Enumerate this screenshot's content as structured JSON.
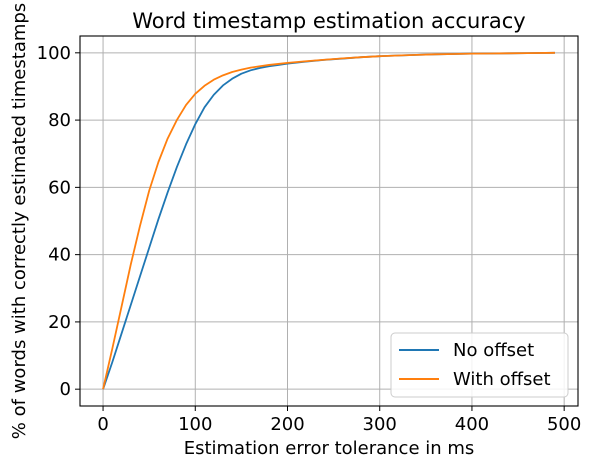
{
  "chart_data": {
    "type": "line",
    "title": "Word timestamp estimation accuracy",
    "xlabel": "Estimation error tolerance in ms",
    "ylabel": "% of words with correctly estimated timestamps",
    "xlim": [
      -25,
      515
    ],
    "ylim": [
      -5,
      105
    ],
    "xticks": [
      0,
      100,
      200,
      300,
      400,
      500
    ],
    "yticks": [
      0,
      20,
      40,
      60,
      80,
      100
    ],
    "grid": true,
    "legend": "lower-right",
    "series": [
      {
        "name": "No offset",
        "color": "#1f77b4",
        "x": [
          0,
          10,
          20,
          30,
          40,
          50,
          60,
          70,
          80,
          90,
          100,
          110,
          120,
          130,
          140,
          150,
          160,
          170,
          180,
          190,
          200,
          220,
          240,
          260,
          280,
          300,
          320,
          340,
          360,
          380,
          400,
          420,
          440,
          460,
          490
        ],
        "y": [
          0,
          8,
          16.5,
          25,
          33.5,
          42,
          50.5,
          58.5,
          66,
          72.8,
          78.8,
          83.8,
          87.5,
          90.3,
          92.3,
          93.8,
          94.8,
          95.5,
          96,
          96.4,
          96.8,
          97.4,
          97.9,
          98.3,
          98.7,
          99,
          99.2,
          99.4,
          99.55,
          99.65,
          99.75,
          99.8,
          99.85,
          99.9,
          100
        ]
      },
      {
        "name": "With offset",
        "color": "#ff7f0e",
        "x": [
          0,
          10,
          20,
          30,
          40,
          50,
          60,
          70,
          80,
          90,
          100,
          110,
          120,
          130,
          140,
          150,
          160,
          170,
          180,
          190,
          200,
          220,
          240,
          260,
          280,
          300,
          320,
          340,
          360,
          380,
          400,
          420,
          440,
          460,
          490
        ],
        "y": [
          0,
          12,
          24.5,
          37,
          48.5,
          59,
          67.5,
          74.5,
          80,
          84.5,
          87.8,
          90.2,
          92,
          93.3,
          94.3,
          95,
          95.6,
          96,
          96.4,
          96.7,
          97,
          97.5,
          97.95,
          98.35,
          98.7,
          99,
          99.2,
          99.4,
          99.55,
          99.65,
          99.75,
          99.8,
          99.85,
          99.9,
          100
        ]
      }
    ]
  }
}
